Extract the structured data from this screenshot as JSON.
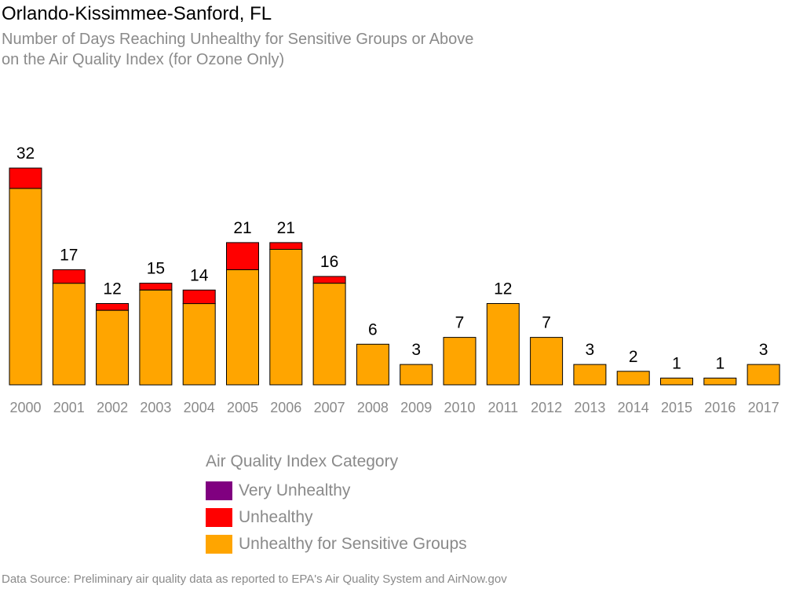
{
  "header": {
    "title": "Orlando-Kissimmee-Sanford, FL",
    "subtitle_line1": "Number of Days Reaching Unhealthy for Sensitive Groups or Above",
    "subtitle_line2": "on the Air Quality Index (for Ozone Only)"
  },
  "legend": {
    "title": "Air Quality Index Category",
    "items": [
      {
        "label": "Very Unhealthy",
        "color": "#800080"
      },
      {
        "label": "Unhealthy",
        "color": "#ff0000"
      },
      {
        "label": "Unhealthy for Sensitive Groups",
        "color": "#ffa500"
      }
    ]
  },
  "footer": {
    "source": "Data Source: Preliminary air quality data as reported to EPA's Air Quality System and AirNow.gov"
  },
  "chart_data": {
    "type": "bar",
    "stacked": true,
    "categories": [
      "2000",
      "2001",
      "2002",
      "2003",
      "2004",
      "2005",
      "2006",
      "2007",
      "2008",
      "2009",
      "2010",
      "2011",
      "2012",
      "2013",
      "2014",
      "2015",
      "2016",
      "2017"
    ],
    "series": [
      {
        "name": "Unhealthy for Sensitive Groups",
        "color": "#ffa500",
        "values": [
          29,
          15,
          11,
          14,
          12,
          17,
          20,
          15,
          6,
          3,
          7,
          12,
          7,
          3,
          2,
          1,
          1,
          3
        ]
      },
      {
        "name": "Unhealthy",
        "color": "#ff0000",
        "values": [
          3,
          2,
          1,
          1,
          2,
          4,
          1,
          1,
          0,
          0,
          0,
          0,
          0,
          0,
          0,
          0,
          0,
          0
        ]
      },
      {
        "name": "Very Unhealthy",
        "color": "#800080",
        "values": [
          0,
          0,
          0,
          0,
          0,
          0,
          0,
          0,
          0,
          0,
          0,
          0,
          0,
          0,
          0,
          0,
          0,
          0
        ]
      }
    ],
    "totals": [
      32,
      17,
      12,
      15,
      14,
      21,
      21,
      16,
      6,
      3,
      7,
      12,
      7,
      3,
      2,
      1,
      1,
      3
    ],
    "ylim": [
      0,
      35
    ],
    "grid": false,
    "legend_position": "bottom"
  }
}
